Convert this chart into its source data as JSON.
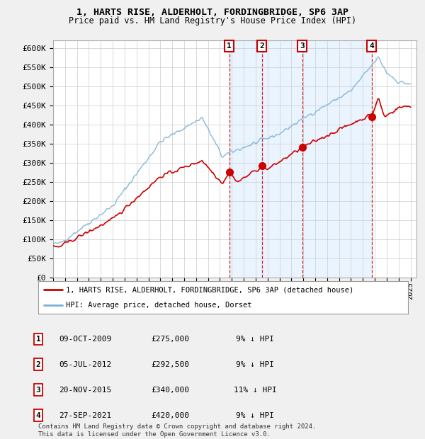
{
  "title1": "1, HARTS RISE, ALDERHOLT, FORDINGBRIDGE, SP6 3AP",
  "title2": "Price paid vs. HM Land Registry's House Price Index (HPI)",
  "xlim_start": 1995.0,
  "xlim_end": 2025.5,
  "ylim": [
    0,
    620000
  ],
  "yticks": [
    0,
    50000,
    100000,
    150000,
    200000,
    250000,
    300000,
    350000,
    400000,
    450000,
    500000,
    550000,
    600000
  ],
  "ytick_labels": [
    "£0",
    "£50K",
    "£100K",
    "£150K",
    "£200K",
    "£250K",
    "£300K",
    "£350K",
    "£400K",
    "£450K",
    "£500K",
    "£550K",
    "£600K"
  ],
  "bg_color": "#f0f0f0",
  "plot_bg": "#ffffff",
  "grid_color": "#cccccc",
  "hpi_color": "#7ab0d8",
  "price_color": "#cc0000",
  "sale_dates": [
    2009.78,
    2012.51,
    2015.9,
    2021.74
  ],
  "sale_labels": [
    "1",
    "2",
    "3",
    "4"
  ],
  "sale_prices": [
    275000,
    292500,
    340000,
    420000
  ],
  "legend_line1": "1, HARTS RISE, ALDERHOLT, FORDINGBRIDGE, SP6 3AP (detached house)",
  "legend_line2": "HPI: Average price, detached house, Dorset",
  "table_entries": [
    [
      "1",
      "09-OCT-2009",
      "£275,000",
      "9% ↓ HPI"
    ],
    [
      "2",
      "05-JUL-2012",
      "£292,500",
      "9% ↓ HPI"
    ],
    [
      "3",
      "20-NOV-2015",
      "£340,000",
      "11% ↓ HPI"
    ],
    [
      "4",
      "27-SEP-2021",
      "£420,000",
      "9% ↓ HPI"
    ]
  ],
  "footer": "Contains HM Land Registry data © Crown copyright and database right 2024.\nThis data is licensed under the Open Government Licence v3.0.",
  "shade_color": "#ddeeff",
  "xticks": [
    1995,
    1996,
    1997,
    1998,
    1999,
    2000,
    2001,
    2002,
    2003,
    2004,
    2005,
    2006,
    2007,
    2008,
    2009,
    2010,
    2011,
    2012,
    2013,
    2014,
    2015,
    2016,
    2017,
    2018,
    2019,
    2020,
    2021,
    2022,
    2023,
    2024,
    2025
  ]
}
